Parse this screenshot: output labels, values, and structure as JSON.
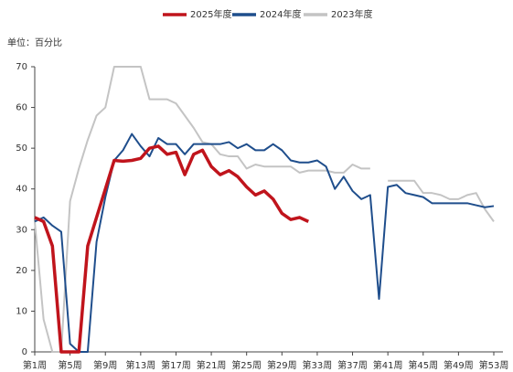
{
  "chart_data": {
    "type": "line",
    "unit_label": "单位：百分比",
    "x": [
      1,
      2,
      3,
      4,
      5,
      6,
      7,
      8,
      9,
      10,
      11,
      12,
      13,
      14,
      15,
      16,
      17,
      18,
      19,
      20,
      21,
      22,
      23,
      24,
      25,
      26,
      27,
      28,
      29,
      30,
      31,
      32,
      33,
      34,
      35,
      36,
      37,
      38,
      39,
      40,
      41,
      42,
      43,
      44,
      45,
      46,
      47,
      48,
      49,
      50,
      51,
      52,
      53
    ],
    "series": [
      {
        "name": "2025年度",
        "color": "#c0141c",
        "width": 3.5,
        "values": [
          33,
          32,
          26,
          0,
          0,
          0,
          26,
          33,
          40,
          47,
          46.8,
          47,
          47.5,
          50,
          50.5,
          48.5,
          49,
          43.5,
          48.5,
          49.5,
          45.5,
          43.5,
          44.5,
          43,
          40.5,
          38.5,
          39.5,
          37.5,
          34,
          32.5,
          33,
          32,
          null,
          null,
          null,
          null,
          null,
          null,
          null,
          null,
          null,
          null,
          null,
          null,
          null,
          null,
          null,
          null,
          null,
          null,
          null,
          null,
          null
        ]
      },
      {
        "name": "2024年度",
        "color": "#1f4e8c",
        "width": 2,
        "values": [
          32,
          33,
          31,
          29.5,
          2,
          0,
          0,
          27,
          38,
          47,
          49.5,
          53.5,
          50.5,
          48,
          52.5,
          51,
          51,
          48.5,
          51,
          51,
          51,
          51,
          51.5,
          50,
          51,
          49.5,
          49.5,
          51,
          49.5,
          47,
          46.5,
          46.5,
          47,
          45.5,
          40,
          43,
          39.5,
          37.5,
          38.5,
          13,
          40.5,
          41,
          39,
          38.5,
          38,
          36.5,
          36.5,
          36.5,
          36.5,
          36.5,
          36,
          35.5,
          35.8
        ]
      },
      {
        "name": "2023年度",
        "color": "#c4c4c4",
        "width": 2,
        "values": [
          32,
          8,
          0,
          0,
          37,
          45,
          52,
          58,
          60,
          70,
          70,
          70,
          70,
          62,
          62,
          62,
          61,
          58,
          55,
          51.5,
          51,
          48.5,
          48,
          48,
          45,
          46,
          45.5,
          45.5,
          45.5,
          45.5,
          44,
          44.5,
          44.5,
          44.5,
          44,
          44,
          46,
          45,
          45,
          null,
          42,
          42,
          42,
          42,
          39,
          39,
          38.5,
          37.5,
          37.5,
          38.5,
          39,
          35,
          32
        ]
      }
    ],
    "xlim": [
      1,
      53
    ],
    "xticks": [
      {
        "value": 1,
        "label": "第1周"
      },
      {
        "value": 5,
        "label": "第5周"
      },
      {
        "value": 9,
        "label": "第9周"
      },
      {
        "value": 13,
        "label": "第13周"
      },
      {
        "value": 17,
        "label": "第17周"
      },
      {
        "value": 21,
        "label": "第21周"
      },
      {
        "value": 25,
        "label": "第25周"
      },
      {
        "value": 29,
        "label": "第29周"
      },
      {
        "value": 33,
        "label": "第33周"
      },
      {
        "value": 37,
        "label": "第37周"
      },
      {
        "value": 41,
        "label": "第41周"
      },
      {
        "value": 45,
        "label": "第45周"
      },
      {
        "value": 49,
        "label": "第49周"
      },
      {
        "value": 53,
        "label": "第53周"
      }
    ],
    "ylim": [
      0,
      70
    ],
    "yticks": [
      0,
      10,
      20,
      30,
      40,
      50,
      60,
      70
    ]
  }
}
